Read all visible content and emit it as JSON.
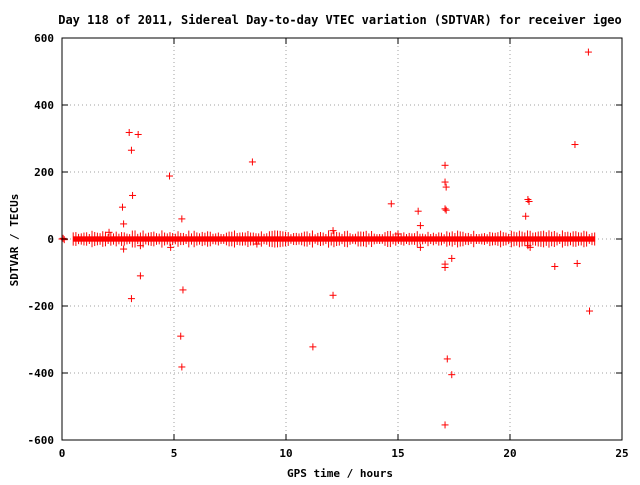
{
  "chart_data": {
    "type": "scatter",
    "title": "Day 118 of 2011, Sidereal Day-to-day VTEC variation (SDTVAR) for receiver igeo",
    "xlabel": "GPS time / hours",
    "ylabel": "SDTVAR / TECUs",
    "xlim": [
      0,
      25
    ],
    "ylim": [
      -600,
      600
    ],
    "x_ticks": [
      0,
      5,
      10,
      15,
      20,
      25
    ],
    "y_ticks": [
      -600,
      -400,
      -200,
      0,
      200,
      400,
      600
    ],
    "grid": true,
    "marker": "+",
    "marker_color": "#ff0000",
    "dense_band": {
      "x_start": 0.5,
      "x_end": 23.8,
      "y_half_width": 8
    },
    "points": [
      [
        0,
        0
      ],
      [
        0.05,
        2
      ],
      [
        0.1,
        -2
      ],
      [
        2.1,
        20
      ],
      [
        2.7,
        95
      ],
      [
        2.75,
        45
      ],
      [
        2.75,
        -30
      ],
      [
        3.0,
        318
      ],
      [
        3.1,
        265
      ],
      [
        3.15,
        130
      ],
      [
        3.1,
        -178
      ],
      [
        3.4,
        312
      ],
      [
        3.5,
        -110
      ],
      [
        3.5,
        -20
      ],
      [
        4.8,
        188
      ],
      [
        4.85,
        -25
      ],
      [
        5.35,
        60
      ],
      [
        5.4,
        -152
      ],
      [
        5.3,
        -290
      ],
      [
        5.35,
        -382
      ],
      [
        8.5,
        230
      ],
      [
        8.7,
        -15
      ],
      [
        11.2,
        -322
      ],
      [
        12.1,
        -168
      ],
      [
        12.1,
        25
      ],
      [
        14.7,
        105
      ],
      [
        15.0,
        15
      ],
      [
        15.9,
        83
      ],
      [
        16.0,
        40
      ],
      [
        16.0,
        -25
      ],
      [
        17.1,
        220
      ],
      [
        17.1,
        170
      ],
      [
        17.15,
        155
      ],
      [
        17.1,
        90
      ],
      [
        17.15,
        86
      ],
      [
        17.1,
        -75
      ],
      [
        17.1,
        -85
      ],
      [
        17.2,
        -358
      ],
      [
        17.4,
        -405
      ],
      [
        17.4,
        -58
      ],
      [
        17.1,
        -555
      ],
      [
        20.7,
        68
      ],
      [
        20.8,
        118
      ],
      [
        20.85,
        112
      ],
      [
        20.8,
        -20
      ],
      [
        20.9,
        -25
      ],
      [
        22.0,
        -82
      ],
      [
        22.9,
        282
      ],
      [
        23.0,
        -73
      ],
      [
        23.5,
        558
      ],
      [
        23.55,
        -215
      ]
    ]
  }
}
